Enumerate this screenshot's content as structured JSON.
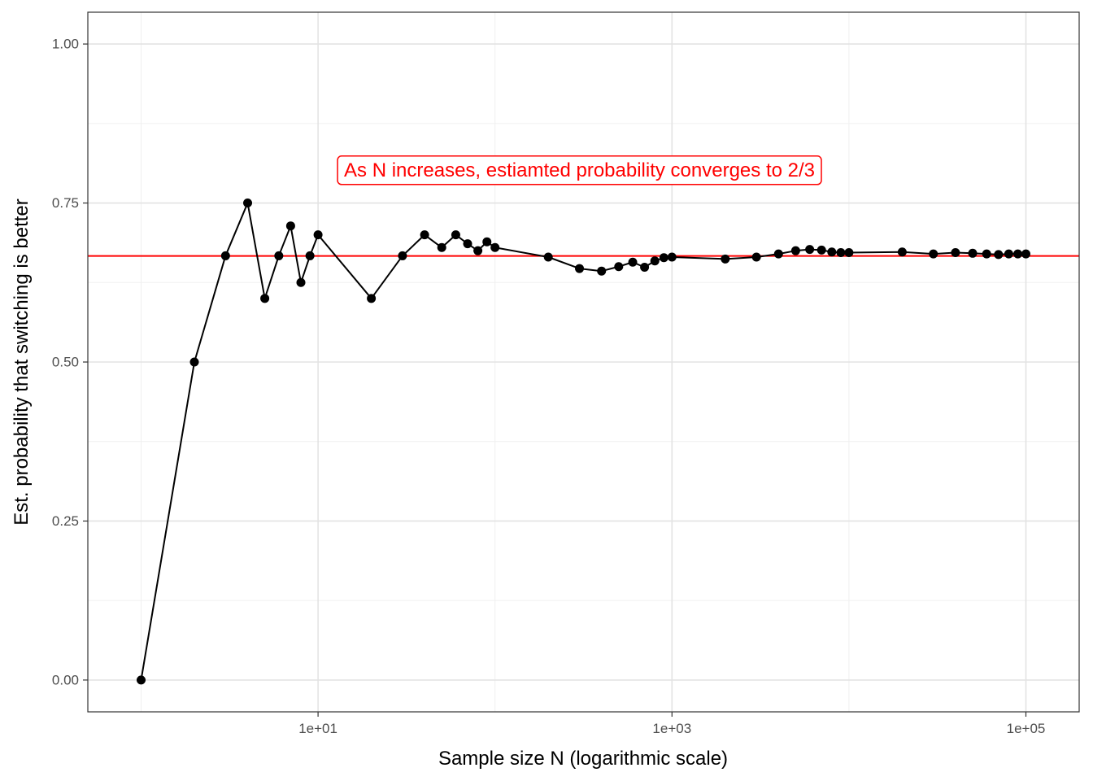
{
  "chart_data": {
    "type": "line",
    "xlabel": "Sample size N (logarithmic scale)",
    "ylabel": "Est. probability that switching is better",
    "x_scale": "log10",
    "xlim": [
      0.5,
      200000
    ],
    "ylim": [
      -0.05,
      1.05
    ],
    "x_ticks": [
      {
        "value": 10,
        "label": "1e+01"
      },
      {
        "value": 1000,
        "label": "1e+03"
      },
      {
        "value": 100000,
        "label": "1e+05"
      }
    ],
    "x_minor_ticks": [
      1,
      100,
      10000
    ],
    "y_ticks": [
      {
        "value": 0,
        "label": "0.00"
      },
      {
        "value": 0.25,
        "label": "0.25"
      },
      {
        "value": 0.5,
        "label": "0.50"
      },
      {
        "value": 0.75,
        "label": "0.75"
      },
      {
        "value": 1,
        "label": "1.00"
      }
    ],
    "y_minor_ticks": [
      0.125,
      0.375,
      0.625,
      0.875
    ],
    "grid": true,
    "reference_line": {
      "y": 0.6667,
      "color": "#ff0000"
    },
    "annotation": {
      "text": "As N increases, estiamted probability converges to 2/3",
      "x": 300,
      "y": 0.8,
      "color": "#ff0000"
    },
    "series": [
      {
        "color": "#000000",
        "points": [
          [
            1,
            0
          ],
          [
            2,
            0.5
          ],
          [
            3,
            0.667
          ],
          [
            4,
            0.75
          ],
          [
            5,
            0.6
          ],
          [
            6,
            0.667
          ],
          [
            7,
            0.714
          ],
          [
            8,
            0.625
          ],
          [
            9,
            0.667
          ],
          [
            10,
            0.7
          ],
          [
            20,
            0.6
          ],
          [
            30,
            0.667
          ],
          [
            40,
            0.7
          ],
          [
            50,
            0.68
          ],
          [
            60,
            0.7
          ],
          [
            70,
            0.686
          ],
          [
            80,
            0.675
          ],
          [
            90,
            0.689
          ],
          [
            100,
            0.68
          ],
          [
            200,
            0.665
          ],
          [
            300,
            0.647
          ],
          [
            400,
            0.643
          ],
          [
            500,
            0.65
          ],
          [
            600,
            0.657
          ],
          [
            700,
            0.649
          ],
          [
            800,
            0.659
          ],
          [
            900,
            0.664
          ],
          [
            1000,
            0.665
          ],
          [
            2000,
            0.662
          ],
          [
            3000,
            0.665
          ],
          [
            4000,
            0.67
          ],
          [
            5000,
            0.675
          ],
          [
            6000,
            0.677
          ],
          [
            7000,
            0.676
          ],
          [
            8000,
            0.673
          ],
          [
            9000,
            0.672
          ],
          [
            10000,
            0.672
          ],
          [
            20000,
            0.673
          ],
          [
            30000,
            0.67
          ],
          [
            40000,
            0.672
          ],
          [
            50000,
            0.671
          ],
          [
            60000,
            0.67
          ],
          [
            70000,
            0.669
          ],
          [
            80000,
            0.67
          ],
          [
            90000,
            0.67
          ],
          [
            100000,
            0.67
          ]
        ]
      }
    ]
  }
}
